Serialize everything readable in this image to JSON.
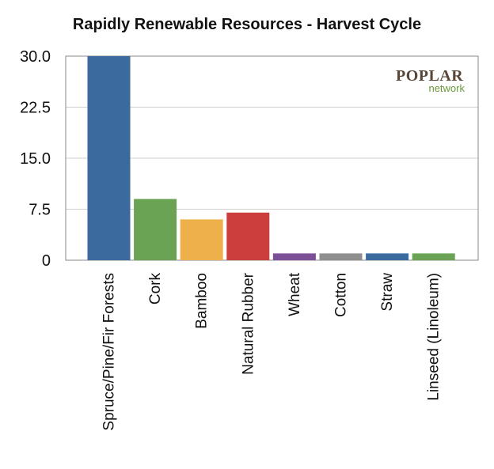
{
  "chart_data": {
    "type": "bar",
    "title": "Rapidly Renewable Resources - Harvest Cycle",
    "xlabel": "",
    "ylabel": "",
    "categories": [
      "Spruce/Pine/Fir Forests",
      "Cork",
      "Bamboo",
      "Natural Rubber",
      "Wheat",
      "Cotton",
      "Straw",
      "Linseed (Linoleum)"
    ],
    "values": [
      30,
      9,
      6,
      7,
      1,
      1,
      1,
      1
    ],
    "colors": [
      "#3a6a9e",
      "#6aa354",
      "#eeb04a",
      "#cc3d3d",
      "#7c4f96",
      "#8e8e8e",
      "#3a6a9e",
      "#6aa354"
    ],
    "ylim": [
      0,
      30
    ],
    "yticks": [
      "0",
      "7.5",
      "15.0",
      "22.5",
      "30.0"
    ],
    "grid": true,
    "legend": "none"
  },
  "logo": {
    "main": "POPLAR",
    "sub": "network"
  }
}
